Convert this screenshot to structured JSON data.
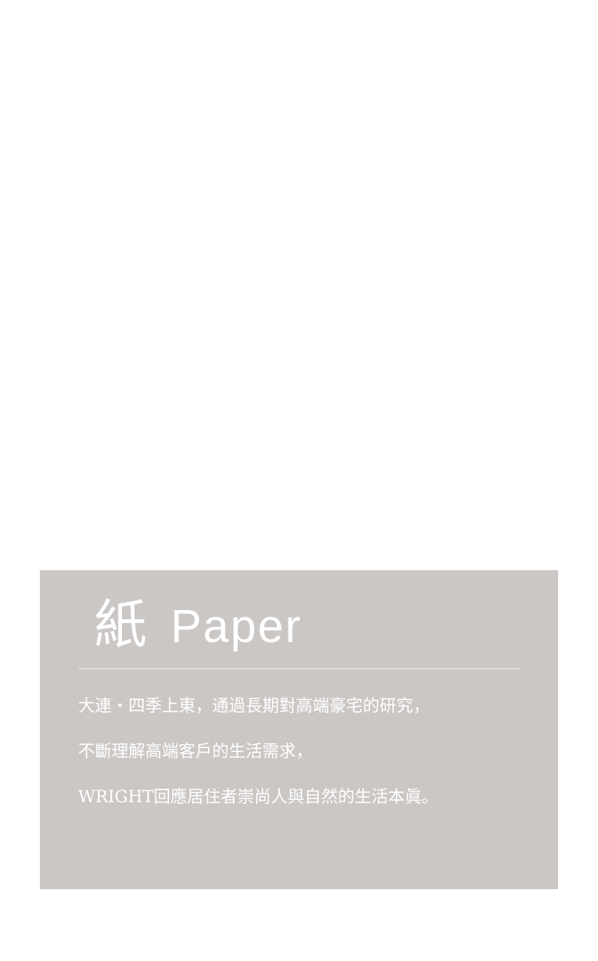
{
  "card": {
    "title_cjk": "紙",
    "title_en": "Paper",
    "lines": [
      "大連・四季上東，通過長期對高端豪宅的研究，",
      "不斷理解高端客戶的生活需求，",
      "WRIGHT回應居住者崇尚人與自然的生活本眞。"
    ]
  },
  "colors": {
    "card_background": "#cbc7c5",
    "text": "#ffffff",
    "page_background": "#ffffff"
  }
}
